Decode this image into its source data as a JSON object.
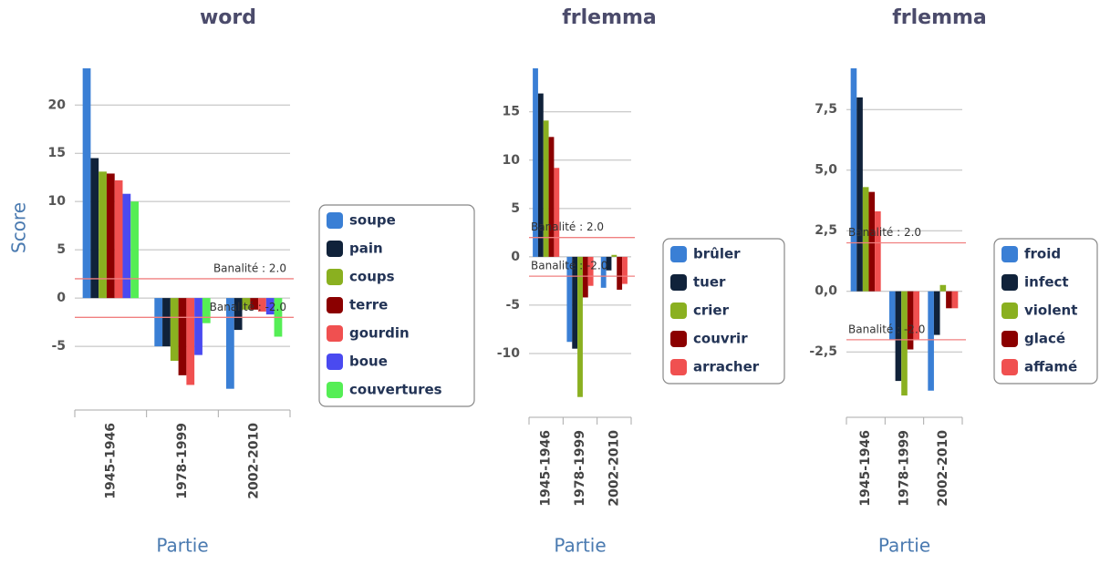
{
  "chart_data": [
    {
      "type": "bar",
      "title": "word",
      "y_label": "Score",
      "x_label": "Partie",
      "categories": [
        "1945-1946",
        "1978-1999",
        "2002-2010"
      ],
      "series": [
        {
          "name": "soupe",
          "color": "#3a7fd5",
          "values": [
            23.8,
            -5.0,
            -9.4
          ]
        },
        {
          "name": "pain",
          "color": "#10223a",
          "values": [
            14.5,
            -5.0,
            -3.3
          ]
        },
        {
          "name": "coups",
          "color": "#8ab020",
          "values": [
            13.1,
            -6.5,
            -1.2
          ]
        },
        {
          "name": "terre",
          "color": "#8b0000",
          "values": [
            12.9,
            -8.0,
            -1.2
          ]
        },
        {
          "name": "gourdin",
          "color": "#f05050",
          "values": [
            12.2,
            -9.0,
            -1.4
          ]
        },
        {
          "name": "boue",
          "color": "#4a4af0",
          "values": [
            10.8,
            -5.9,
            -1.7
          ]
        },
        {
          "name": "couvertures",
          "color": "#55ee55",
          "values": [
            10.0,
            -2.6,
            -4.0
          ]
        }
      ],
      "ylim": [
        -11.6,
        23.8
      ],
      "yticks": [
        20,
        15,
        10,
        5,
        0,
        -5
      ],
      "grid": true,
      "thresholds": [
        {
          "value": 2.0,
          "label": "Banalité : 2.0"
        },
        {
          "value": -2.0,
          "label": "Banalité : -2.0"
        }
      ]
    },
    {
      "type": "bar",
      "title": "frlemma",
      "x_label": "Partie",
      "categories": [
        "1945-1946",
        "1978-1999",
        "2002-2010"
      ],
      "series": [
        {
          "name": "brûler",
          "color": "#3a7fd5",
          "values": [
            19.5,
            -8.8,
            -3.2
          ]
        },
        {
          "name": "tuer",
          "color": "#10223a",
          "values": [
            16.9,
            -9.5,
            -1.4
          ]
        },
        {
          "name": "crier",
          "color": "#8ab020",
          "values": [
            14.1,
            -14.5,
            0.2
          ]
        },
        {
          "name": "couvrir",
          "color": "#8b0000",
          "values": [
            12.4,
            -4.2,
            -3.4
          ]
        },
        {
          "name": "arracher",
          "color": "#f05050",
          "values": [
            9.2,
            -3.0,
            -2.8
          ]
        }
      ],
      "ylim": [
        -16.6,
        19.5
      ],
      "yticks": [
        15,
        10,
        5,
        0,
        -5,
        -10
      ],
      "grid": true,
      "thresholds": [
        {
          "value": 2.0,
          "label": "Banalité : 2.0"
        },
        {
          "value": -2.0,
          "label": "Banalité : -2.0"
        }
      ]
    },
    {
      "type": "bar",
      "title": "frlemma",
      "x_label": "Partie",
      "categories": [
        "1945-1946",
        "1978-1999",
        "2002-2010"
      ],
      "series": [
        {
          "name": "froid",
          "color": "#3a7fd5",
          "values": [
            9.2,
            -2.0,
            -4.1
          ]
        },
        {
          "name": "infect",
          "color": "#10223a",
          "values": [
            8.0,
            -3.7,
            -1.8
          ]
        },
        {
          "name": "violent",
          "color": "#8ab020",
          "values": [
            4.3,
            -4.3,
            0.26
          ]
        },
        {
          "name": "glacé",
          "color": "#8b0000",
          "values": [
            4.1,
            -2.4,
            -0.7
          ]
        },
        {
          "name": "affamé",
          "color": "#f05050",
          "values": [
            3.3,
            -2.0,
            -0.7
          ]
        }
      ],
      "ylim": [
        -5.2,
        9.2
      ],
      "yticks": [
        {
          "value": 7.5,
          "label": "7,5"
        },
        {
          "value": 5.0,
          "label": "5,0"
        },
        {
          "value": 2.5,
          "label": "2,5"
        },
        {
          "value": 0.0,
          "label": "0,0"
        },
        {
          "value": -2.5,
          "label": "-2,5"
        }
      ],
      "grid": true,
      "thresholds": [
        {
          "value": 2.0,
          "label": "Banalité : 2.0"
        },
        {
          "value": -2.0,
          "label": "Banalité : -2.0"
        }
      ]
    }
  ]
}
